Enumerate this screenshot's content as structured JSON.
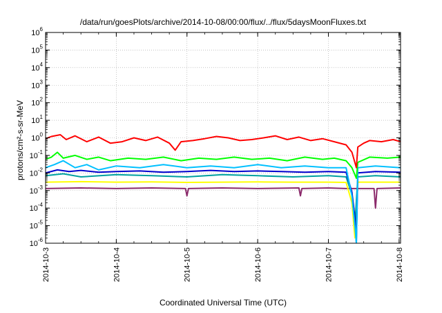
{
  "chart_data": {
    "type": "line",
    "title": "/data/run/goesPlots/archive/2014-10-08/00:00/flux/../flux/5daysMoonFluxes.txt",
    "xlabel": "Coordinated Universal Time (UTC)",
    "ylabel": "protons/cm²-s-sr-MeV",
    "y_scale": "log",
    "ylim": [
      1e-06,
      1000000.0
    ],
    "xlim": [
      "2014-10-03",
      "2014-10-08 00:30"
    ],
    "grid": true,
    "x_ticks": [
      "2014-10-3",
      "2014-10-4",
      "2014-10-5",
      "2014-10-6",
      "2014-10-7",
      "2014-10-8"
    ],
    "y_ticks": [
      {
        "mantissa": "10",
        "exponent": "-6",
        "value": 1e-06
      },
      {
        "mantissa": "10",
        "exponent": "-5",
        "value": 1e-05
      },
      {
        "mantissa": "10",
        "exponent": "-4",
        "value": 0.0001
      },
      {
        "mantissa": "10",
        "exponent": "-3",
        "value": 0.001
      },
      {
        "mantissa": "10",
        "exponent": "-2",
        "value": 0.01
      },
      {
        "mantissa": "10",
        "exponent": "-1",
        "value": 0.1
      },
      {
        "mantissa": "10",
        "exponent": "0",
        "value": 1
      },
      {
        "mantissa": "10",
        "exponent": "1",
        "value": 10
      },
      {
        "mantissa": "10",
        "exponent": "2",
        "value": 100
      },
      {
        "mantissa": "10",
        "exponent": "3",
        "value": 1000
      },
      {
        "mantissa": "10",
        "exponent": "4",
        "value": 10000
      },
      {
        "mantissa": "10",
        "exponent": "5",
        "value": 100000
      },
      {
        "mantissa": "10",
        "exponent": "6",
        "value": 1000000
      }
    ],
    "series": [
      {
        "color": "#ff0000",
        "x": [
          "2014-10-03 00:00",
          "2014-10-03 02:00",
          "2014-10-03 05:00",
          "2014-10-03 07:00",
          "2014-10-03 10:00",
          "2014-10-03 14:00",
          "2014-10-03 18:00",
          "2014-10-03 22:00",
          "2014-10-04 02:00",
          "2014-10-04 06:00",
          "2014-10-04 10:00",
          "2014-10-04 14:00",
          "2014-10-04 18:00",
          "2014-10-04 20:00",
          "2014-10-04 22:00",
          "2014-10-05 02:00",
          "2014-10-05 06:00",
          "2014-10-05 10:00",
          "2014-10-05 14:00",
          "2014-10-05 18:00",
          "2014-10-05 22:00",
          "2014-10-06 02:00",
          "2014-10-06 06:00",
          "2014-10-06 10:00",
          "2014-10-06 14:00",
          "2014-10-06 18:00",
          "2014-10-06 22:00",
          "2014-10-07 02:00",
          "2014-10-07 06:00",
          "2014-10-07 08:00",
          "2014-10-07 09:30",
          "2014-10-07 10:00",
          "2014-10-07 12:00",
          "2014-10-07 14:00",
          "2014-10-07 18:00",
          "2014-10-07 22:00",
          "2014-10-08 00:30"
        ],
        "y": [
          0.9,
          1.2,
          1.5,
          0.8,
          1.3,
          0.6,
          1.1,
          0.5,
          0.6,
          1.0,
          0.7,
          1.1,
          0.5,
          0.2,
          0.6,
          0.7,
          0.9,
          1.2,
          1.0,
          0.7,
          0.8,
          1.0,
          1.3,
          0.8,
          1.1,
          0.7,
          0.9,
          0.6,
          0.4,
          0.15,
          0.02,
          0.3,
          0.5,
          0.7,
          0.6,
          0.8,
          0.6
        ]
      },
      {
        "color": "#00ff00",
        "x": [
          "2014-10-03 00:00",
          "2014-10-03 02:00",
          "2014-10-03 04:00",
          "2014-10-03 06:00",
          "2014-10-03 10:00",
          "2014-10-03 14:00",
          "2014-10-03 18:00",
          "2014-10-03 22:00",
          "2014-10-04 04:00",
          "2014-10-04 10:00",
          "2014-10-04 16:00",
          "2014-10-04 22:00",
          "2014-10-05 04:00",
          "2014-10-05 10:00",
          "2014-10-05 16:00",
          "2014-10-05 22:00",
          "2014-10-06 04:00",
          "2014-10-06 10:00",
          "2014-10-06 16:00",
          "2014-10-06 22:00",
          "2014-10-07 02:00",
          "2014-10-07 06:00",
          "2014-10-07 08:00",
          "2014-10-07 09:30",
          "2014-10-07 10:00",
          "2014-10-07 14:00",
          "2014-10-07 20:00",
          "2014-10-08 00:30"
        ],
        "y": [
          0.06,
          0.08,
          0.15,
          0.07,
          0.1,
          0.06,
          0.08,
          0.05,
          0.07,
          0.06,
          0.08,
          0.05,
          0.07,
          0.06,
          0.08,
          0.06,
          0.07,
          0.05,
          0.08,
          0.06,
          0.07,
          0.05,
          0.02,
          0.005,
          0.04,
          0.08,
          0.07,
          0.08
        ]
      },
      {
        "color": "#00c0ff",
        "x": [
          "2014-10-03 00:00",
          "2014-10-03 03:00",
          "2014-10-03 06:00",
          "2014-10-03 10:00",
          "2014-10-03 14:00",
          "2014-10-03 18:00",
          "2014-10-04 00:00",
          "2014-10-04 08:00",
          "2014-10-04 16:00",
          "2014-10-05 00:00",
          "2014-10-05 08:00",
          "2014-10-05 16:00",
          "2014-10-06 00:00",
          "2014-10-06 08:00",
          "2014-10-06 16:00",
          "2014-10-07 00:00",
          "2014-10-07 06:00",
          "2014-10-07 08:00",
          "2014-10-07 09:00",
          "2014-10-07 09:30",
          "2014-10-07 10:00",
          "2014-10-07 16:00",
          "2014-10-08 00:30"
        ],
        "y": [
          0.02,
          0.03,
          0.05,
          0.02,
          0.03,
          0.015,
          0.025,
          0.02,
          0.03,
          0.02,
          0.025,
          0.02,
          0.03,
          0.02,
          0.025,
          0.02,
          0.02,
          0.0005,
          1e-05,
          1e-06,
          0.02,
          0.025,
          0.02
        ]
      },
      {
        "color": "#0000cd",
        "x": [
          "2014-10-03 00:00",
          "2014-10-03 04:00",
          "2014-10-03 08:00",
          "2014-10-03 12:00",
          "2014-10-03 18:00",
          "2014-10-04 00:00",
          "2014-10-04 08:00",
          "2014-10-04 16:00",
          "2014-10-05 00:00",
          "2014-10-05 08:00",
          "2014-10-05 16:00",
          "2014-10-06 00:00",
          "2014-10-06 08:00",
          "2014-10-06 16:00",
          "2014-10-07 00:00",
          "2014-10-07 06:00",
          "2014-10-07 08:00",
          "2014-10-07 09:00",
          "2014-10-07 09:30",
          "2014-10-07 10:00",
          "2014-10-07 16:00",
          "2014-10-08 00:30"
        ],
        "y": [
          0.01,
          0.015,
          0.012,
          0.014,
          0.011,
          0.012,
          0.013,
          0.011,
          0.012,
          0.014,
          0.012,
          0.013,
          0.012,
          0.011,
          0.012,
          0.011,
          0.0008,
          3e-05,
          1e-06,
          0.01,
          0.012,
          0.011
        ]
      },
      {
        "color": "#00a0a0",
        "x": [
          "2014-10-03 00:00",
          "2014-10-03 06:00",
          "2014-10-03 12:00",
          "2014-10-04 00:00",
          "2014-10-04 12:00",
          "2014-10-05 00:00",
          "2014-10-05 12:00",
          "2014-10-06 00:00",
          "2014-10-06 12:00",
          "2014-10-07 00:00",
          "2014-10-07 06:00",
          "2014-10-07 08:00",
          "2014-10-07 09:00",
          "2014-10-07 10:00",
          "2014-10-07 16:00",
          "2014-10-08 00:30"
        ],
        "y": [
          0.007,
          0.009,
          0.006,
          0.008,
          0.007,
          0.006,
          0.008,
          0.007,
          0.006,
          0.007,
          0.006,
          0.0006,
          1e-05,
          0.006,
          0.007,
          0.006
        ]
      },
      {
        "color": "#ffff00",
        "x": [
          "2014-10-03 00:00",
          "2014-10-03 12:00",
          "2014-10-04 00:00",
          "2014-10-04 12:00",
          "2014-10-05 00:00",
          "2014-10-05 12:00",
          "2014-10-06 00:00",
          "2014-10-06 12:00",
          "2014-10-07 00:00",
          "2014-10-07 06:00",
          "2014-10-07 08:00",
          "2014-10-07 09:00",
          "2014-10-07 10:00",
          "2014-10-07 20:00",
          "2014-10-08 00:30"
        ],
        "y": [
          0.003,
          0.0032,
          0.003,
          0.0031,
          0.0029,
          0.003,
          0.0031,
          0.003,
          0.003,
          0.0029,
          0.0002,
          2e-06,
          0.003,
          0.003,
          0.003
        ]
      },
      {
        "color": "#8b2a6b",
        "x": [
          "2014-10-03 00:00",
          "2014-10-03 12:00",
          "2014-10-04 00:00",
          "2014-10-04 12:00",
          "2014-10-04 23:30",
          "2014-10-05 00:00",
          "2014-10-05 00:30",
          "2014-10-05 12:00",
          "2014-10-06 00:00",
          "2014-10-06 14:00",
          "2014-10-06 14:30",
          "2014-10-06 15:00",
          "2014-10-07 00:00",
          "2014-10-07 06:00",
          "2014-10-07 08:00",
          "2014-10-07 10:00",
          "2014-10-07 15:30",
          "2014-10-07 16:00",
          "2014-10-07 16:30",
          "2014-10-08 00:30"
        ],
        "y": [
          0.0013,
          0.0014,
          0.0013,
          0.0014,
          0.0013,
          0.0005,
          0.0013,
          0.0014,
          0.0013,
          0.0014,
          0.0005,
          0.0013,
          0.0014,
          0.0013,
          0.0013,
          0.0013,
          0.0013,
          0.0001,
          0.0013,
          0.0014
        ]
      }
    ]
  }
}
